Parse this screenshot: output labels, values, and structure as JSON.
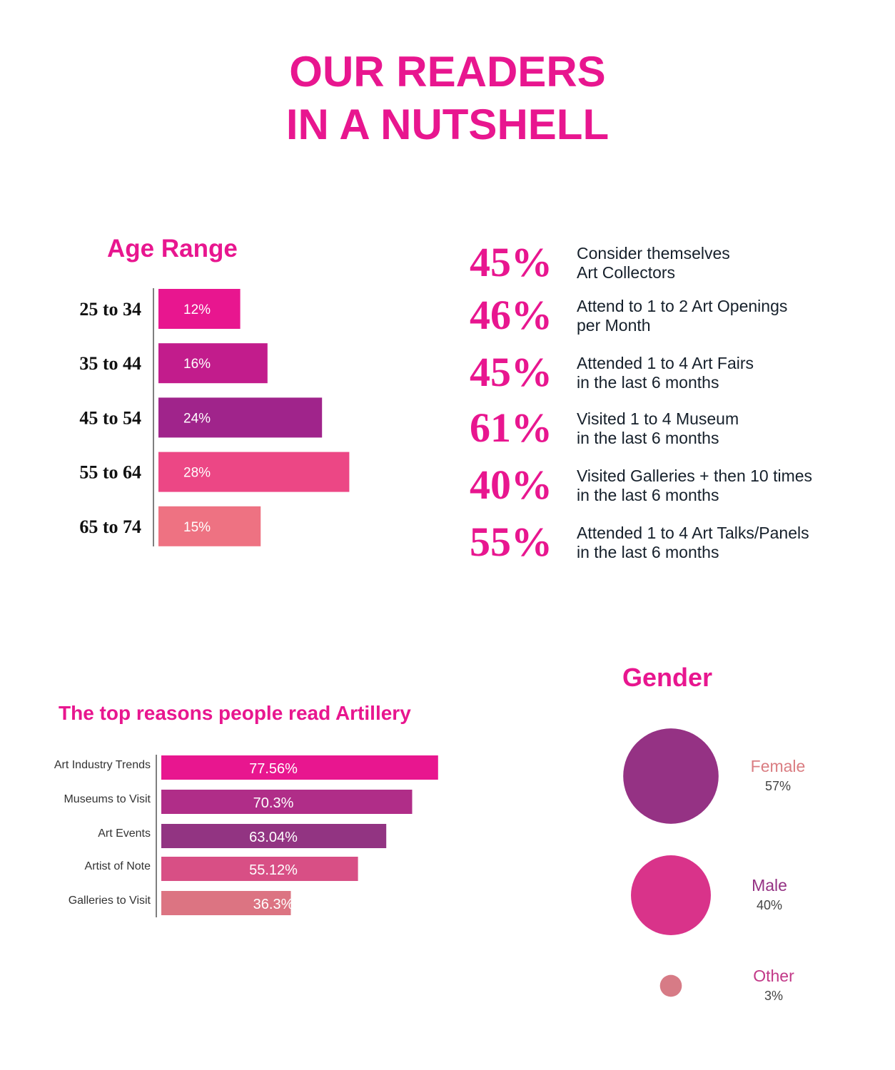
{
  "header": {
    "title_line1": "OUR READERS",
    "title_line2": "IN A NUTSHELL"
  },
  "stats": [
    {
      "value": "45%",
      "line1": "Consider themselves",
      "line2": "Art Collectors"
    },
    {
      "value": "46%",
      "line1": "Attend to 1 to 2 Art Openings",
      "line2": "per Month"
    },
    {
      "value": "45%",
      "line1": "Attended 1 to 4 Art Fairs",
      "line2": "in the last 6 months"
    },
    {
      "value": "61%",
      "line1": "Visited 1 to 4 Museum",
      "line2": "in the last 6 months"
    },
    {
      "value": "40%",
      "line1": "Visited Galleries + then 10 times",
      "line2": "in the last 6 months"
    },
    {
      "value": "55%",
      "line1": "Attended 1 to 4 Art Talks/Panels",
      "line2": "in the last 6 months"
    }
  ],
  "chart_data": [
    {
      "type": "bar",
      "orientation": "horizontal",
      "title": "Age Range",
      "categories": [
        "25 to 34",
        "35 to 44",
        "45 to 54",
        "55 to 64",
        "65 to 74"
      ],
      "values": [
        12,
        16,
        24,
        28,
        15
      ],
      "value_labels": [
        "12%",
        "16%",
        "24%",
        "28%",
        "15%"
      ],
      "colors": [
        "#e8168f",
        "#c21c8c",
        "#a0248b",
        "#ec4785",
        "#ee7282"
      ],
      "xlim": [
        0,
        30
      ],
      "grid": false
    },
    {
      "type": "bar",
      "orientation": "horizontal",
      "title": "The top reasons people read Artillery",
      "categories": [
        "Art Industry Trends",
        "Museums to Visit",
        "Art Events",
        "Artist of Note",
        "Galleries to Visit"
      ],
      "values": [
        77.56,
        70.3,
        63.04,
        55.12,
        36.3
      ],
      "value_labels": [
        "77.56%",
        "70.3%",
        "63.04%",
        "55.12%",
        "36.3%"
      ],
      "colors": [
        "#e8168f",
        "#b02d88",
        "#923482",
        "#d84f85",
        "#dc7482"
      ],
      "xlim": [
        0,
        100
      ],
      "grid": false
    },
    {
      "type": "bubble",
      "title": "Gender",
      "categories": [
        "Female",
        "Male",
        "Other"
      ],
      "values": [
        57,
        40,
        3
      ],
      "value_labels": [
        "57%",
        "40%",
        "3%"
      ],
      "circle_colors": [
        "#953284",
        "#d9338a",
        "#d77b86"
      ],
      "label_colors": [
        "#da7d82",
        "#953284",
        "#c23988"
      ]
    }
  ]
}
